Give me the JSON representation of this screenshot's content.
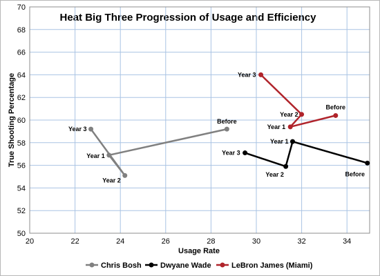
{
  "chart_data": {
    "type": "line",
    "title": "Heat Big Three Progression of Usage and Efficiency",
    "xlabel": "Usage Rate",
    "ylabel": "True Shooting Percentage",
    "xlim": [
      20,
      35
    ],
    "ylim": [
      50,
      70
    ],
    "xticks": [
      20,
      22,
      24,
      26,
      28,
      30,
      32,
      34
    ],
    "yticks": [
      50,
      52,
      54,
      56,
      58,
      60,
      62,
      64,
      66,
      68,
      70
    ],
    "grid": true,
    "legend_position": "bottom",
    "series": [
      {
        "name": "Chris Bosh",
        "color": "#808080",
        "points": [
          {
            "label": "Before",
            "x": 28.7,
            "y": 59.2
          },
          {
            "label": "Year 1",
            "x": 23.5,
            "y": 56.9
          },
          {
            "label": "Year 2",
            "x": 24.2,
            "y": 55.1
          },
          {
            "label": "Year 3",
            "x": 22.7,
            "y": 59.2
          }
        ]
      },
      {
        "name": "Dwyane Wade",
        "color": "#000000",
        "points": [
          {
            "label": "Before",
            "x": 34.9,
            "y": 56.2
          },
          {
            "label": "Year 1",
            "x": 31.6,
            "y": 58.1
          },
          {
            "label": "Year 2",
            "x": 31.3,
            "y": 55.9
          },
          {
            "label": "Year 3",
            "x": 29.5,
            "y": 57.1
          }
        ]
      },
      {
        "name": "LeBron James (Miami)",
        "color": "#b0242b",
        "points": [
          {
            "label": "Before",
            "x": 33.5,
            "y": 60.4
          },
          {
            "label": "Year 1",
            "x": 31.5,
            "y": 59.4
          },
          {
            "label": "Year 2",
            "x": 32.0,
            "y": 60.5
          },
          {
            "label": "Year 3",
            "x": 30.2,
            "y": 64.0
          }
        ]
      }
    ]
  }
}
